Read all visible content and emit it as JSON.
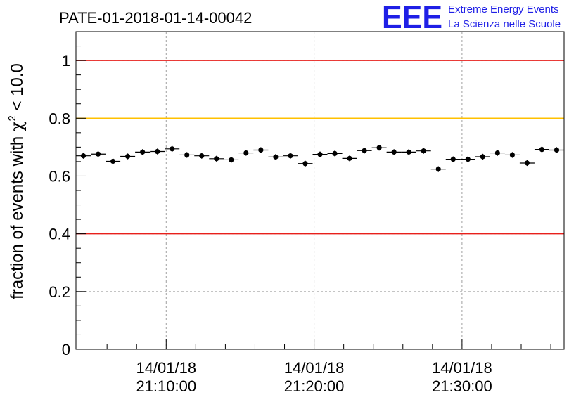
{
  "chart_data": {
    "type": "scatter",
    "title": "PATE-01-2018-01-14-00042",
    "ylabel_prefix": "fraction of events with ",
    "ylabel_symbol": "χ",
    "ylabel_sup": "2",
    "ylabel_suffix": " < 10.0",
    "ylim": [
      0,
      1.1
    ],
    "xlim_minutes": [
      0,
      33
    ],
    "grid": true,
    "y_ticks": [
      {
        "value": 0,
        "label": "0"
      },
      {
        "value": 0.2,
        "label": "0.2"
      },
      {
        "value": 0.4,
        "label": "0.4"
      },
      {
        "value": 0.6,
        "label": "0.6"
      },
      {
        "value": 0.8,
        "label": "0.8"
      },
      {
        "value": 1,
        "label": "1"
      }
    ],
    "x_ticks": [
      {
        "value": 6.1,
        "date": "14/01/18",
        "time": "21:10:00"
      },
      {
        "value": 16.1,
        "date": "14/01/18",
        "time": "21:20:00"
      },
      {
        "value": 26.1,
        "date": "14/01/18",
        "time": "21:30:00"
      }
    ],
    "x_minor_ticks": [
      2.1,
      4.1,
      8.1,
      10.1,
      12.1,
      14.1,
      18.1,
      20.1,
      22.1,
      24.1,
      28.1,
      30.1,
      32.1
    ],
    "reference_lines": [
      {
        "name": "upper-red-line",
        "value": 1.0,
        "color": "#e8201c"
      },
      {
        "name": "yellow-line",
        "value": 0.8,
        "color": "#ffc000"
      },
      {
        "name": "lower-red-line",
        "value": 0.4,
        "color": "#e8201c"
      }
    ],
    "series": [
      {
        "name": "fraction",
        "bin_width": 1,
        "y_error": 0.01,
        "x": [
          0.5,
          1.5,
          2.5,
          3.5,
          4.5,
          5.5,
          6.5,
          7.5,
          8.5,
          9.5,
          10.5,
          11.5,
          12.5,
          13.5,
          14.5,
          15.5,
          16.5,
          17.5,
          18.5,
          19.5,
          20.5,
          21.5,
          22.5,
          23.5,
          24.5,
          25.5,
          26.5,
          27.5,
          28.5,
          29.5,
          30.5,
          31.5,
          32.5
        ],
        "values": [
          0.67,
          0.676,
          0.651,
          0.668,
          0.683,
          0.685,
          0.694,
          0.673,
          0.67,
          0.66,
          0.656,
          0.68,
          0.69,
          0.666,
          0.67,
          0.643,
          0.675,
          0.678,
          0.661,
          0.688,
          0.698,
          0.683,
          0.683,
          0.687,
          0.624,
          0.658,
          0.658,
          0.667,
          0.68,
          0.673,
          0.645,
          0.692,
          0.69
        ]
      }
    ]
  },
  "logo": {
    "mark": "EEE",
    "line1": "Extreme Energy Events",
    "line2": "La Scienza nelle Scuole"
  },
  "colors": {
    "logo": "#1f1fe6",
    "marker": "#000000",
    "grid": "#a0a0a0"
  }
}
